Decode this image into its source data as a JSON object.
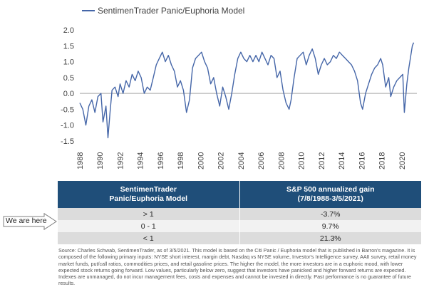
{
  "chart_data": {
    "type": "line",
    "series": [
      {
        "name": "SentimenTrader Panic/Euphoria Model",
        "color": "#4566A8",
        "points": [
          [
            1988.0,
            -0.3
          ],
          [
            1988.3,
            -0.5
          ],
          [
            1988.6,
            -1.0
          ],
          [
            1988.9,
            -0.4
          ],
          [
            1989.2,
            -0.2
          ],
          [
            1989.5,
            -0.6
          ],
          [
            1989.8,
            -0.1
          ],
          [
            1990.1,
            0.0
          ],
          [
            1990.3,
            -0.9
          ],
          [
            1990.6,
            -0.4
          ],
          [
            1990.8,
            -1.4
          ],
          [
            1991.0,
            -0.6
          ],
          [
            1991.2,
            0.1
          ],
          [
            1991.5,
            0.2
          ],
          [
            1991.8,
            -0.1
          ],
          [
            1992.0,
            0.3
          ],
          [
            1992.3,
            0.0
          ],
          [
            1992.6,
            0.4
          ],
          [
            1992.9,
            0.2
          ],
          [
            1993.2,
            0.6
          ],
          [
            1993.5,
            0.4
          ],
          [
            1993.8,
            0.7
          ],
          [
            1994.1,
            0.5
          ],
          [
            1994.4,
            0.0
          ],
          [
            1994.7,
            0.2
          ],
          [
            1995.0,
            0.1
          ],
          [
            1995.3,
            0.5
          ],
          [
            1995.6,
            0.9
          ],
          [
            1995.9,
            1.1
          ],
          [
            1996.2,
            1.3
          ],
          [
            1996.5,
            1.0
          ],
          [
            1996.8,
            1.2
          ],
          [
            1997.1,
            0.9
          ],
          [
            1997.4,
            0.7
          ],
          [
            1997.7,
            0.2
          ],
          [
            1998.0,
            0.4
          ],
          [
            1998.3,
            0.1
          ],
          [
            1998.6,
            -0.6
          ],
          [
            1998.9,
            -0.2
          ],
          [
            1999.2,
            0.8
          ],
          [
            1999.5,
            1.1
          ],
          [
            1999.8,
            1.2
          ],
          [
            2000.1,
            1.3
          ],
          [
            2000.4,
            1.0
          ],
          [
            2000.7,
            0.8
          ],
          [
            2001.0,
            0.3
          ],
          [
            2001.3,
            0.5
          ],
          [
            2001.6,
            0.0
          ],
          [
            2001.9,
            -0.4
          ],
          [
            2002.2,
            0.2
          ],
          [
            2002.5,
            -0.1
          ],
          [
            2002.8,
            -0.5
          ],
          [
            2003.1,
            0.0
          ],
          [
            2003.4,
            0.6
          ],
          [
            2003.7,
            1.1
          ],
          [
            2004.0,
            1.3
          ],
          [
            2004.3,
            1.1
          ],
          [
            2004.6,
            1.0
          ],
          [
            2004.9,
            1.2
          ],
          [
            2005.2,
            1.0
          ],
          [
            2005.5,
            1.2
          ],
          [
            2005.8,
            1.0
          ],
          [
            2006.1,
            1.3
          ],
          [
            2006.4,
            1.1
          ],
          [
            2006.7,
            0.9
          ],
          [
            2007.0,
            1.2
          ],
          [
            2007.3,
            1.1
          ],
          [
            2007.6,
            0.5
          ],
          [
            2007.9,
            0.7
          ],
          [
            2008.2,
            0.1
          ],
          [
            2008.5,
            -0.3
          ],
          [
            2008.8,
            -0.5
          ],
          [
            2009.0,
            -0.2
          ],
          [
            2009.3,
            0.5
          ],
          [
            2009.6,
            1.1
          ],
          [
            2009.9,
            1.2
          ],
          [
            2010.2,
            1.3
          ],
          [
            2010.5,
            0.9
          ],
          [
            2010.8,
            1.2
          ],
          [
            2011.1,
            1.4
          ],
          [
            2011.4,
            1.1
          ],
          [
            2011.7,
            0.6
          ],
          [
            2012.0,
            0.9
          ],
          [
            2012.3,
            1.1
          ],
          [
            2012.6,
            0.9
          ],
          [
            2012.9,
            1.0
          ],
          [
            2013.2,
            1.2
          ],
          [
            2013.5,
            1.1
          ],
          [
            2013.8,
            1.3
          ],
          [
            2014.1,
            1.2
          ],
          [
            2014.4,
            1.1
          ],
          [
            2014.7,
            1.0
          ],
          [
            2015.0,
            0.9
          ],
          [
            2015.3,
            0.7
          ],
          [
            2015.6,
            0.4
          ],
          [
            2015.9,
            -0.3
          ],
          [
            2016.1,
            -0.5
          ],
          [
            2016.4,
            0.0
          ],
          [
            2016.7,
            0.3
          ],
          [
            2017.0,
            0.6
          ],
          [
            2017.3,
            0.8
          ],
          [
            2017.6,
            0.9
          ],
          [
            2017.9,
            1.1
          ],
          [
            2018.1,
            0.9
          ],
          [
            2018.4,
            0.2
          ],
          [
            2018.7,
            0.5
          ],
          [
            2018.9,
            -0.1
          ],
          [
            2019.2,
            0.2
          ],
          [
            2019.5,
            0.4
          ],
          [
            2019.8,
            0.5
          ],
          [
            2020.1,
            0.6
          ],
          [
            2020.25,
            -0.6
          ],
          [
            2020.5,
            0.3
          ],
          [
            2020.7,
            0.8
          ],
          [
            2020.9,
            1.2
          ],
          [
            2021.05,
            1.5
          ],
          [
            2021.18,
            1.6
          ]
        ]
      }
    ],
    "x_tick_labels": [
      "1988",
      "1990",
      "1992",
      "1994",
      "1996",
      "1998",
      "2000",
      "2002",
      "2004",
      "2006",
      "2008",
      "2010",
      "2012",
      "2014",
      "2016",
      "2018",
      "2020"
    ],
    "y_tick_labels": [
      "2.0",
      "1.5",
      "1.0",
      "0.5",
      "0.0",
      "-0.5",
      "-1.0",
      "-1.5"
    ],
    "xlim": [
      1988,
      2021.5
    ],
    "ylim": [
      -1.5,
      2.0
    ],
    "grid": false,
    "legend_position": "top-left",
    "table": {
      "headers": [
        "SentimenTrader\nPanic/Euphoria Model",
        "S&P 500 annualized gain\n(7/8/1988-3/5/2021)"
      ],
      "rows": [
        [
          "> 1",
          "-3.7%"
        ],
        [
          "0 - 1",
          "9.7%"
        ],
        [
          "< 1",
          "21.3%"
        ]
      ]
    }
  },
  "annotation": {
    "label": "We are here"
  },
  "source_text": "Source: Charles Schwab, SentimenTrader, as of 3/5/2021. This model is based on the Citi Panic / Euphoria model that is published in Barron's magazine. It is composed of the following primary inputs: NYSE short interest, margin debt, Nasdaq vs NYSE volume, Investor's Intelligence survey, AAII survey, retail money market funds, put/call ratios, commodities prices, and retail gasoline prices. The higher the model, the more investors are in a euphoric mood, with lower expected stock returns going forward. Low values, particularly below zero, suggest that investors have panicked and higher forward returns are expected. Indexes are unmanaged, do not incur management fees, costs and expenses and cannot be invested in directly. Past performance is no guarantee of future results.",
  "colors": {
    "series": "#4566A8",
    "table_header": "#1F4E79",
    "row_dark": "#DCDCDC",
    "row_light": "#F2F2F2",
    "axis": "#A6A6A6"
  }
}
